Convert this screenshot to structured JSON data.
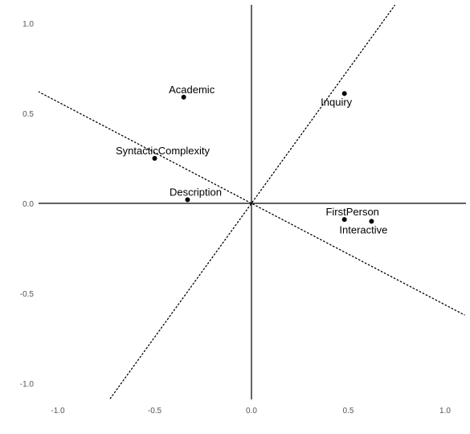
{
  "chart_data": {
    "type": "scatter",
    "title": "",
    "xlabel": "",
    "ylabel": "",
    "xlim": [
      -1.1,
      1.1
    ],
    "ylim": [
      -1.1,
      1.1
    ],
    "grid": false,
    "x_ticks": [
      "-1.0",
      "-0.5",
      "0.0",
      "0.5",
      "1.0"
    ],
    "x_tick_values": [
      -1.0,
      -0.5,
      0.0,
      0.5,
      1.0
    ],
    "y_ticks": [
      "1.0",
      "0.5",
      "0.0",
      "-0.5",
      "-1.0"
    ],
    "y_tick_values": [
      1.0,
      0.5,
      0.0,
      -0.5,
      -1.0
    ],
    "points": [
      {
        "label": "Academic",
        "x": -0.35,
        "y": 0.59
      },
      {
        "label": "Inquiry",
        "x": 0.48,
        "y": 0.61
      },
      {
        "label": "SyntacticComplexity",
        "x": -0.5,
        "y": 0.25
      },
      {
        "label": "Description",
        "x": -0.33,
        "y": 0.02
      },
      {
        "label": "FirstPerson",
        "x": 0.48,
        "y": -0.09
      },
      {
        "label": "Interactive",
        "x": 0.62,
        "y": -0.1
      }
    ],
    "dotted_lines": [
      {
        "x1": -1.1,
        "y1": 0.62,
        "x2": 1.1,
        "y2": -0.62
      },
      {
        "x1": -0.74,
        "y1": -1.1,
        "x2": 0.74,
        "y2": 1.1
      }
    ],
    "point_color": "#000000",
    "axis_color": "#000000"
  }
}
